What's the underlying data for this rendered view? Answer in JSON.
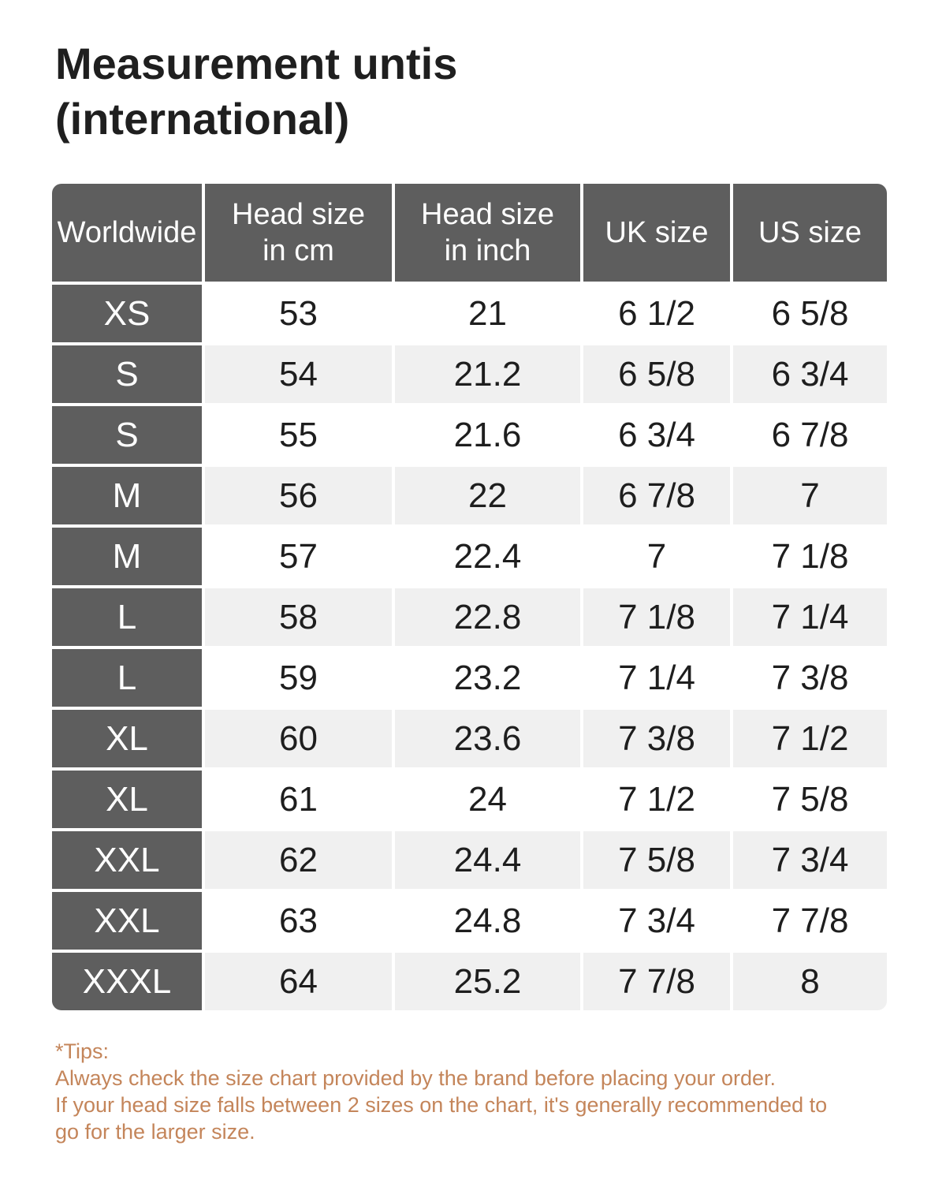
{
  "title": "Measurement untis\n(international)",
  "chart_data": {
    "type": "table",
    "title": "Measurement untis (international)",
    "columns": [
      "Worldwide",
      "Head size in cm",
      "Head size in inch",
      "UK size",
      "US size"
    ],
    "rows": [
      [
        "XS",
        "53",
        "21",
        "6 1/2",
        "6 5/8"
      ],
      [
        "S",
        "54",
        "21.2",
        "6 5/8",
        "6 3/4"
      ],
      [
        "S",
        "55",
        "21.6",
        "6 3/4",
        "6 7/8"
      ],
      [
        "M",
        "56",
        "22",
        "6 7/8",
        "7"
      ],
      [
        "M",
        "57",
        "22.4",
        "7",
        "7 1/8"
      ],
      [
        "L",
        "58",
        "22.8",
        "7 1/8",
        "7 1/4"
      ],
      [
        "L",
        "59",
        "23.2",
        "7 1/4",
        "7 3/8"
      ],
      [
        "XL",
        "60",
        "23.6",
        "7 3/8",
        "7 1/2"
      ],
      [
        "XL",
        "61",
        "24",
        "7 1/2",
        "7 5/8"
      ],
      [
        "XXL",
        "62",
        "24.4",
        "7 5/8",
        "7 3/4"
      ],
      [
        "XXL",
        "63",
        "24.8",
        "7 3/4",
        "7 7/8"
      ],
      [
        "XXXL",
        "64",
        "25.2",
        "7 7/8",
        "8"
      ]
    ]
  },
  "table": {
    "headers": [
      "Worldwide",
      "Head size\nin cm",
      "Head size\nin inch",
      "UK size",
      "US size"
    ]
  },
  "tips": {
    "heading": "*Tips:",
    "body": "Always check the size chart provided by the brand before placing your order.\nIf your head size falls between 2 sizes on the chart, it's generally recommended to\ngo for the larger size."
  },
  "colors": {
    "header_bg": "#5e5e5e",
    "row_alt_bg": "#f0f0f0",
    "row_bg": "#ffffff",
    "header_text": "#ffffff",
    "body_text": "#1e1e1e",
    "tips_text": "#c4855a"
  }
}
